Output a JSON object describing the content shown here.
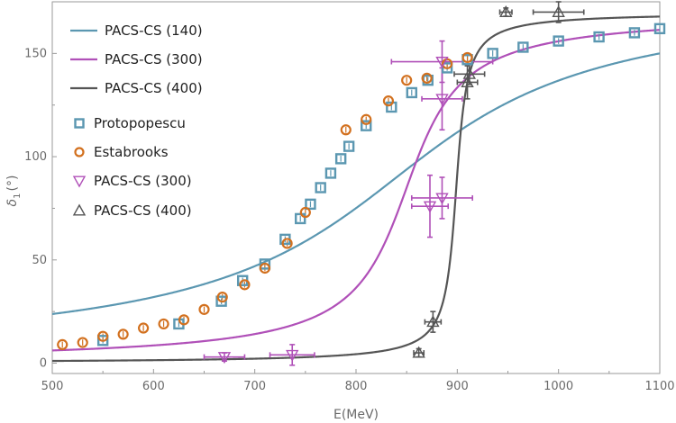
{
  "chart_data": {
    "type": "scatter",
    "xlabel": "E(MeV)",
    "ylabel": "δ1(°)",
    "ylabel_main": "δ",
    "ylabel_sub": "1",
    "ylabel_unit": "(°)",
    "xlim": [
      500,
      1100
    ],
    "ylim": [
      -5,
      175
    ],
    "x_ticks": [
      500,
      600,
      700,
      800,
      900,
      1000,
      1100
    ],
    "y_ticks": [
      0,
      50,
      100,
      150
    ],
    "grid": false,
    "legend_position": "top-left",
    "curves": [
      {
        "name": "PACS-CS (140)",
        "color": "#5b97b1",
        "fit": {
          "mass": 840,
          "width": 150,
          "delta_max": 180
        }
      },
      {
        "name": "PACS-CS (300)",
        "color": "#b050b8",
        "fit": {
          "mass": 850,
          "width": 40,
          "delta_max": 170
        }
      },
      {
        "name": "PACS-CS (400)",
        "color": "#555555",
        "fit": {
          "mass": 899,
          "width": 8,
          "delta_max": 170
        }
      }
    ],
    "series": [
      {
        "name": "Protopopescu",
        "marker": "square",
        "color": "#5b97b1",
        "points": [
          [
            550,
            11,
            1
          ],
          [
            625,
            19,
            1
          ],
          [
            667,
            30,
            1
          ],
          [
            688,
            40,
            1
          ],
          [
            710,
            48,
            1
          ],
          [
            730,
            60,
            1
          ],
          [
            745,
            70,
            1
          ],
          [
            755,
            77,
            1
          ],
          [
            765,
            85,
            1
          ],
          [
            775,
            92,
            1
          ],
          [
            785,
            99,
            1
          ],
          [
            793,
            105,
            1
          ],
          [
            810,
            115,
            1
          ],
          [
            835,
            124,
            1
          ],
          [
            855,
            131,
            1
          ],
          [
            871,
            137,
            1
          ],
          [
            890,
            143,
            1
          ],
          [
            910,
            147,
            1
          ],
          [
            935,
            150,
            1
          ],
          [
            965,
            153,
            1
          ],
          [
            1000,
            156,
            1
          ],
          [
            1040,
            158,
            1
          ],
          [
            1075,
            160,
            1
          ],
          [
            1100,
            162,
            1
          ]
        ]
      },
      {
        "name": "Estabrooks",
        "marker": "circle",
        "color": "#d2701e",
        "points": [
          [
            510,
            9,
            1
          ],
          [
            530,
            10,
            1
          ],
          [
            550,
            13,
            1
          ],
          [
            570,
            14,
            1
          ],
          [
            590,
            17,
            1
          ],
          [
            610,
            19,
            1
          ],
          [
            630,
            21,
            1
          ],
          [
            650,
            26,
            1
          ],
          [
            668,
            32,
            1
          ],
          [
            690,
            38,
            1
          ],
          [
            710,
            46,
            1
          ],
          [
            732,
            58,
            1
          ],
          [
            750,
            73,
            1
          ],
          [
            790,
            113,
            1
          ],
          [
            810,
            118,
            1
          ],
          [
            832,
            127,
            1
          ],
          [
            850,
            137,
            1
          ],
          [
            870,
            138,
            1
          ],
          [
            890,
            145,
            1
          ],
          [
            910,
            148,
            1
          ]
        ]
      },
      {
        "name": "PACS-CS (300)",
        "marker": "triangle-down",
        "color": "#b050b8",
        "points": [
          {
            "x": 670,
            "y": 3,
            "xerr": 20,
            "yerr": 2
          },
          {
            "x": 737,
            "y": 4,
            "xerr": 22,
            "yerr": 5
          },
          {
            "x": 873,
            "y": 76,
            "xerr": 18,
            "yerr": 15
          },
          {
            "x": 885,
            "y": 80,
            "xerr": 30,
            "yerr": 10
          },
          {
            "x": 885,
            "y": 128,
            "xerr": 20,
            "yerr": 15
          },
          {
            "x": 885,
            "y": 146,
            "xerr": 50,
            "yerr": 10
          }
        ]
      },
      {
        "name": "PACS-CS (400)",
        "marker": "triangle-up",
        "color": "#555555",
        "points": [
          {
            "x": 862,
            "y": 5,
            "xerr": 5,
            "yerr": 2
          },
          {
            "x": 876,
            "y": 20,
            "xerr": 8,
            "yerr": 5
          },
          {
            "x": 910,
            "y": 136,
            "xerr": 10,
            "yerr": 8
          },
          {
            "x": 912,
            "y": 140,
            "xerr": 15,
            "yerr": 5
          },
          {
            "x": 948,
            "y": 170,
            "xerr": 6,
            "yerr": 2
          },
          {
            "x": 1000,
            "y": 170,
            "xerr": 25,
            "yerr": 5
          }
        ]
      }
    ]
  }
}
